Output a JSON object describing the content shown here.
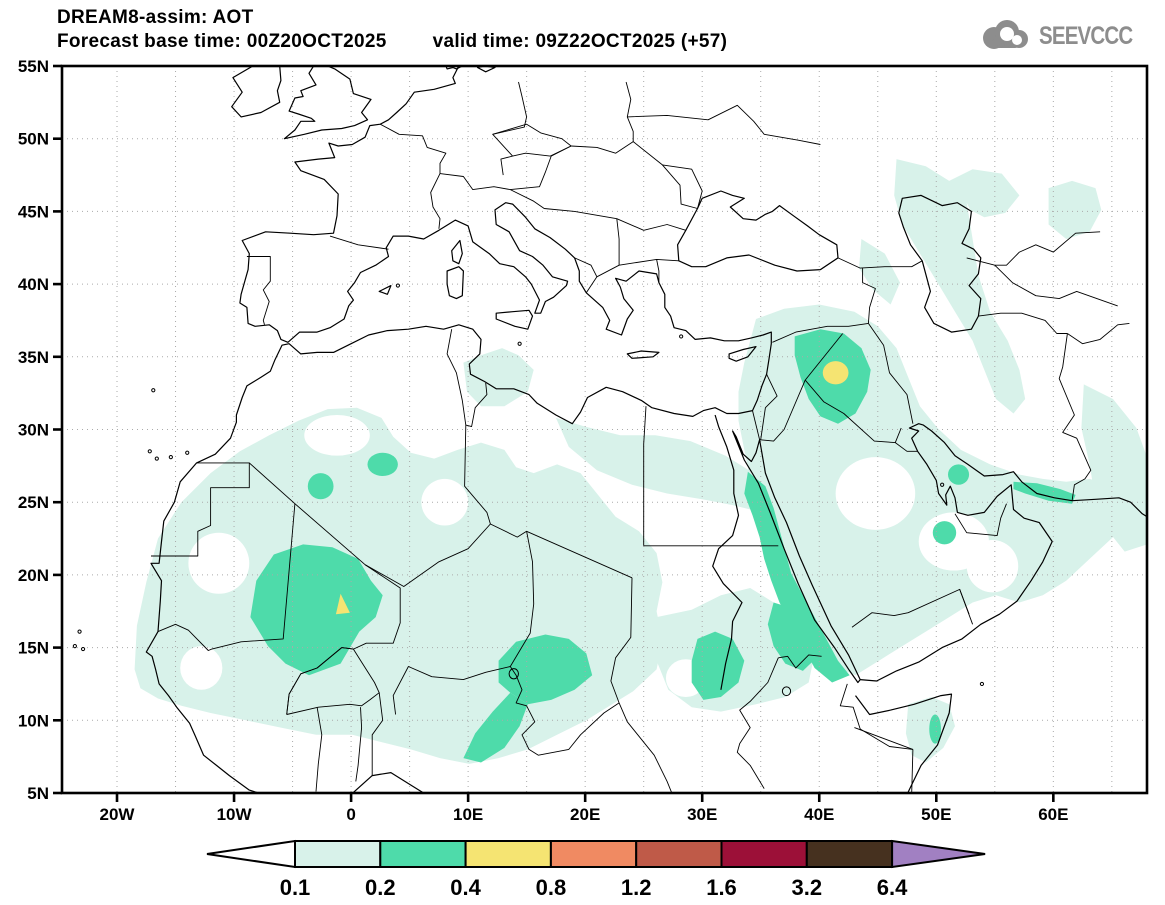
{
  "header": {
    "title": "DREAM8-assim: AOT",
    "base_time_label": "Forecast base time: 00Z20OCT2025",
    "valid_time_label": "valid time: 09Z22OCT2025 (+57)",
    "logo_text": "SEEVCCC"
  },
  "map": {
    "x_axis": {
      "labels": [
        "20W",
        "10W",
        "0",
        "10E",
        "20E",
        "30E",
        "40E",
        "50E",
        "60E"
      ],
      "lons": [
        -20,
        -10,
        0,
        10,
        20,
        30,
        40,
        50,
        60
      ]
    },
    "y_axis": {
      "labels": [
        "55N",
        "50N",
        "45N",
        "40N",
        "35N",
        "30N",
        "25N",
        "20N",
        "15N",
        "10N",
        "5N"
      ],
      "lats": [
        55,
        50,
        45,
        40,
        35,
        30,
        25,
        20,
        15,
        10,
        5
      ]
    },
    "grid": "dotted graticule every 5 degrees",
    "extent": {
      "lon_min_label": "20W",
      "lon_max_label": "60E",
      "lat_min_label": "5N",
      "lat_max_label": "55N"
    }
  },
  "colorbar": {
    "levels": [
      "0.1",
      "0.2",
      "0.4",
      "0.8",
      "1.2",
      "1.6",
      "3.2",
      "6.4"
    ],
    "cell_colors": [
      "#d8f2ea",
      "#4edbaa",
      "#f5e472",
      "#f08a62",
      "#bf5a48",
      "#9c1038",
      "#46311f"
    ],
    "below_min_color": "#ffffff",
    "above_max_color": "#a180c2"
  },
  "aot_regions": [
    {
      "region": "West Africa and southern Sahara (Senegal to Chad)",
      "aot": "0.1-0.2"
    },
    {
      "region": "Central Mali / Niger border",
      "aot": "0.2-0.4 with local 0.4-0.8 maximum near 0E 18N"
    },
    {
      "region": "Chad - western Sudan dust belt (10-16N)",
      "aot": "0.2-0.4"
    },
    {
      "region": "Strait of Sicily / Tunisia-Libya coast",
      "aot": "0.1-0.2"
    },
    {
      "region": "Egypt and Levant margin",
      "aot": "0.1-0.2"
    },
    {
      "region": "Syria / northern Iraq",
      "aot": "0.2-0.4 with local 0.4-0.8 maximum near 41E 34N"
    },
    {
      "region": "Red Sea coastal strip (Egypt, Sudan, Eritrea, Saudi coast)",
      "aot": "0.2-0.4"
    },
    {
      "region": "Arabian Peninsula margins, Persian Gulf, Gulf of Oman coast",
      "aot": "0.1-0.2 with 0.2-0.4 patches"
    },
    {
      "region": "Caspian Sea corridor and northeast Caspian lowlands",
      "aot": "0.1-0.2"
    },
    {
      "region": "Horn of Africa (northeast Somalia)",
      "aot": "0.1-0.2 with small 0.2-0.4 spot"
    }
  ]
}
